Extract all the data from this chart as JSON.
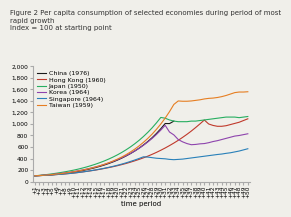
{
  "title_line1": "Figure 2 Per capita consumption of selected economies during period of most",
  "title_line2": "rapid growth",
  "title_line3": "Index = 100 at starting point",
  "xlabel": "time period",
  "ylim": [
    0,
    2000
  ],
  "yticks": [
    0,
    200,
    400,
    600,
    800,
    1000,
    1200,
    1400,
    1600,
    1800,
    2000
  ],
  "n_periods": 50,
  "series": [
    {
      "label": "China (1976)",
      "color": "#1a1a1a",
      "values": [
        100,
        103,
        107,
        112,
        118,
        125,
        133,
        142,
        152,
        164,
        177,
        191,
        207,
        224,
        243,
        264,
        287,
        313,
        341,
        372,
        406,
        444,
        485,
        530,
        580,
        635,
        695,
        762,
        836,
        918,
        1008,
        1007,
        1050,
        null,
        null,
        null,
        null,
        null,
        null,
        null,
        null,
        null,
        null,
        null,
        null,
        null,
        null,
        null,
        null,
        null
      ]
    },
    {
      "label": "Hong Kong (1960)",
      "color": "#c0392b",
      "values": [
        100,
        103,
        107,
        111,
        116,
        121,
        127,
        133,
        140,
        148,
        157,
        167,
        177,
        188,
        200,
        213,
        227,
        242,
        258,
        275,
        294,
        314,
        336,
        360,
        385,
        412,
        441,
        473,
        507,
        544,
        583,
        625,
        669,
        716,
        767,
        820,
        877,
        938,
        1002,
        1069,
        1000,
        975,
        960,
        960,
        970,
        990,
        1010,
        1030,
        1060,
        1090
      ]
    },
    {
      "label": "Japan (1950)",
      "color": "#27ae60",
      "values": [
        100,
        107,
        115,
        124,
        134,
        145,
        157,
        170,
        184,
        199,
        216,
        235,
        255,
        278,
        302,
        329,
        358,
        390,
        425,
        463,
        505,
        551,
        601,
        656,
        716,
        782,
        854,
        933,
        1020,
        1114,
        1100,
        1070,
        1050,
        1040,
        1040,
        1040,
        1050,
        1050,
        1060,
        1070,
        1080,
        1090,
        1100,
        1110,
        1120,
        1120,
        1120,
        1110,
        1120,
        1130
      ]
    },
    {
      "label": "Korea (1964)",
      "color": "#8e44ad",
      "values": [
        100,
        105,
        111,
        117,
        124,
        132,
        141,
        151,
        162,
        174,
        187,
        202,
        218,
        235,
        254,
        275,
        298,
        323,
        350,
        380,
        413,
        449,
        488,
        531,
        578,
        630,
        687,
        749,
        818,
        894,
        977,
        860,
        810,
        730,
        690,
        660,
        640,
        645,
        655,
        660,
        675,
        695,
        710,
        730,
        750,
        770,
        790,
        800,
        815,
        830
      ]
    },
    {
      "label": "Singapore (1964)",
      "color": "#2980b9",
      "values": [
        100,
        103,
        107,
        111,
        116,
        121,
        127,
        133,
        140,
        148,
        157,
        167,
        178,
        190,
        202,
        216,
        231,
        247,
        264,
        283,
        303,
        325,
        349,
        374,
        401,
        430,
        425,
        415,
        405,
        400,
        395,
        385,
        380,
        385,
        390,
        400,
        410,
        420,
        430,
        440,
        450,
        460,
        470,
        478,
        490,
        500,
        515,
        530,
        550,
        570
      ]
    },
    {
      "label": "Taiwan (1959)",
      "color": "#e67e22",
      "values": [
        100,
        104,
        109,
        115,
        122,
        130,
        138,
        148,
        159,
        171,
        184,
        199,
        215,
        233,
        253,
        275,
        299,
        326,
        356,
        389,
        426,
        467,
        513,
        563,
        619,
        681,
        749,
        824,
        908,
        1000,
        1102,
        1215,
        1340,
        1400,
        1395,
        1395,
        1400,
        1410,
        1420,
        1435,
        1445,
        1450,
        1460,
        1475,
        1495,
        1520,
        1545,
        1555,
        1555,
        1560
      ]
    }
  ],
  "background_color": "#f0efea",
  "plot_bg": "#f0efea",
  "title_fontsize": 5.0,
  "label_fontsize": 5.0,
  "tick_fontsize": 4.2,
  "legend_fontsize": 4.5
}
